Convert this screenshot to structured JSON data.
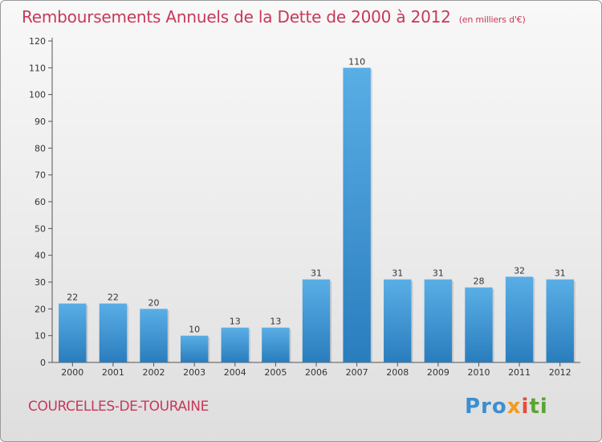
{
  "title": "Remboursements Annuels de la Dette de 2000 à 2012",
  "subtitle": "(en milliers d'€)",
  "commune": "COURCELLES-DE-TOURAINE",
  "logo": {
    "part1": "Pro",
    "part2": "x",
    "part3": "i",
    "part4": "ti"
  },
  "colors": {
    "title": "#c8385a",
    "bar_top": "#5aaee6",
    "bar_bottom": "#2a7dbd"
  },
  "chart_data": {
    "type": "bar",
    "categories": [
      "2000",
      "2001",
      "2002",
      "2003",
      "2004",
      "2005",
      "2006",
      "2007",
      "2008",
      "2009",
      "2010",
      "2011",
      "2012"
    ],
    "values": [
      22,
      22,
      20,
      10,
      13,
      13,
      31,
      110,
      31,
      31,
      28,
      32,
      31
    ],
    "data_labels": [
      "22",
      "22",
      "20",
      "10",
      "13",
      "13",
      "31",
      "110",
      "31",
      "31",
      "28",
      "32",
      "31"
    ],
    "title": "Remboursements Annuels de la Dette de 2000 à 2012",
    "xlabel": "",
    "ylabel": "",
    "ylim": [
      0,
      120
    ],
    "yticks": [
      0,
      10,
      20,
      30,
      40,
      50,
      60,
      70,
      80,
      90,
      100,
      110,
      120
    ],
    "grid": false,
    "legend": "none"
  }
}
